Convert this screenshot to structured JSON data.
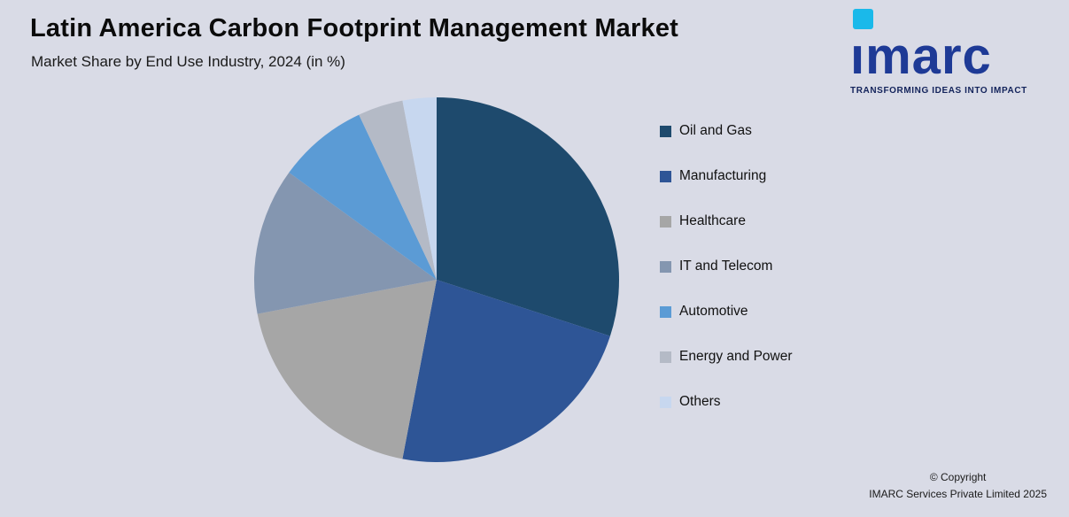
{
  "header": {
    "title": "Latin America Carbon Footprint Management Market",
    "subtitle": "Market Share by End Use Industry, 2024 (in %)"
  },
  "logo": {
    "text": "imarc",
    "tagline": "TRANSFORMING IDEAS INTO IMPACT",
    "brand_color": "#1e3a96",
    "accent_color": "#1ab9ea"
  },
  "chart_data": {
    "type": "pie",
    "title": "Latin America Carbon Footprint Management Market",
    "subtitle": "Market Share by End Use Industry, 2024 (in %)",
    "unit": "%",
    "legend_position": "right",
    "start_angle_deg": -90,
    "direction": "clockwise",
    "values_estimated": true,
    "series": [
      {
        "name": "Oil and Gas",
        "value": 30,
        "color": "#1e4a6d"
      },
      {
        "name": "Manufacturing",
        "value": 23,
        "color": "#2e5596"
      },
      {
        "name": "Healthcare",
        "value": 19,
        "color": "#a6a6a6"
      },
      {
        "name": "IT and Telecom",
        "value": 13,
        "color": "#8496b0"
      },
      {
        "name": "Automotive",
        "value": 8,
        "color": "#5b9bd5"
      },
      {
        "name": "Energy and Power",
        "value": 4,
        "color": "#b4bac6"
      },
      {
        "name": "Others",
        "value": 3,
        "color": "#c7d7ef"
      }
    ]
  },
  "footer": {
    "line1": "© Copyright",
    "line2": "IMARC Services Private Limited 2025"
  },
  "canvas": {
    "background": "#d9dbe6"
  }
}
